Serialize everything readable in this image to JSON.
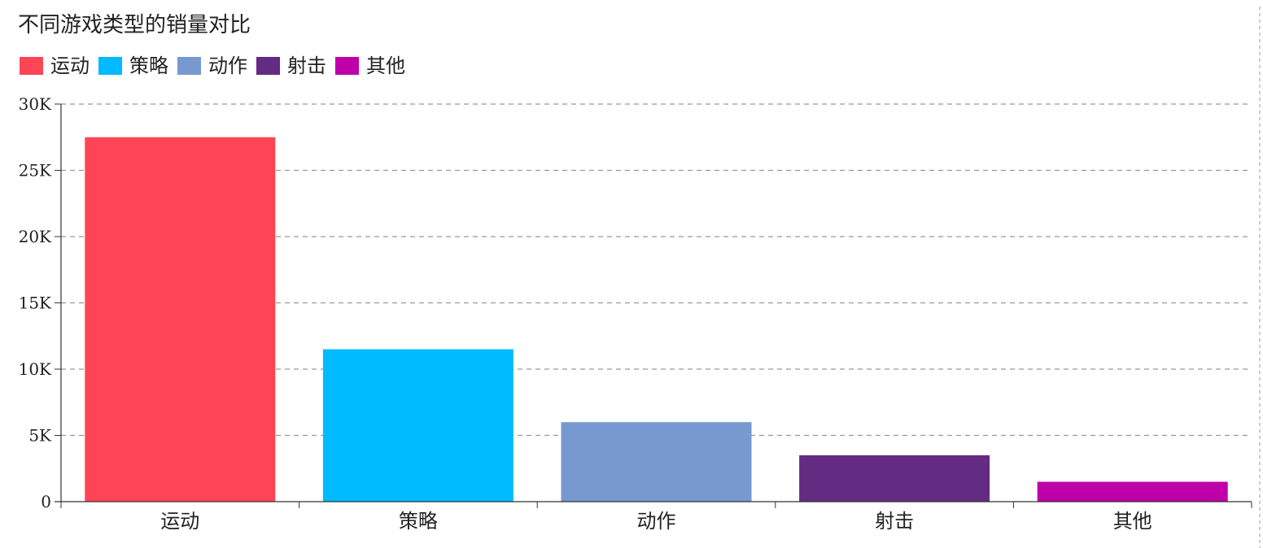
{
  "chart_data": {
    "type": "bar",
    "title": "不同游戏类型的销量对比",
    "xlabel": "",
    "ylabel": "",
    "categories": [
      "运动",
      "策略",
      "动作",
      "射击",
      "其他"
    ],
    "values": [
      27500,
      11500,
      6000,
      3500,
      1500
    ],
    "colors": [
      "#ff4555",
      "#00bbff",
      "#7899d0",
      "#632b82",
      "#bf00aa"
    ],
    "ylim": [
      0,
      30000
    ],
    "yticks": [
      {
        "value": 0,
        "label": "0"
      },
      {
        "value": 5000,
        "label": "5K"
      },
      {
        "value": 10000,
        "label": "10K"
      },
      {
        "value": 15000,
        "label": "15K"
      },
      {
        "value": 20000,
        "label": "20K"
      },
      {
        "value": 25000,
        "label": "25K"
      },
      {
        "value": 30000,
        "label": "30K"
      }
    ],
    "grid": true,
    "legend_position": "top-left",
    "legend": [
      "运动",
      "策略",
      "动作",
      "射击",
      "其他"
    ]
  }
}
